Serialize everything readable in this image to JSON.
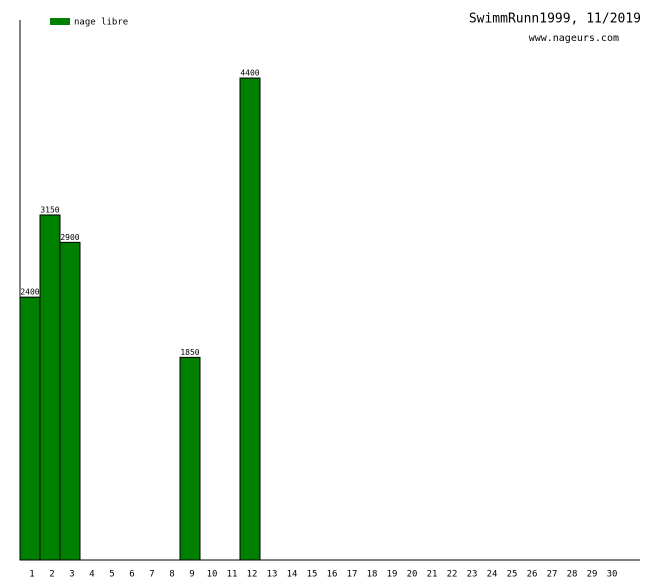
{
  "chart_data": {
    "type": "bar",
    "title": "SwimmRunn1999, 11/2019",
    "subtitle": "www.nageurs.com",
    "categories": [
      "1",
      "2",
      "3",
      "4",
      "5",
      "6",
      "7",
      "8",
      "9",
      "10",
      "11",
      "12",
      "13",
      "14",
      "15",
      "16",
      "17",
      "18",
      "19",
      "20",
      "21",
      "22",
      "23",
      "24",
      "25",
      "26",
      "27",
      "28",
      "29",
      "30"
    ],
    "series": [
      {
        "name": "nage libre",
        "color": "#008000",
        "values": [
          2400,
          3150,
          2900,
          null,
          null,
          null,
          null,
          null,
          1850,
          null,
          null,
          4400,
          null,
          null,
          null,
          null,
          null,
          null,
          null,
          null,
          null,
          null,
          null,
          null,
          null,
          null,
          null,
          null,
          null,
          null
        ]
      }
    ],
    "ylim": [
      0,
      4930
    ],
    "legend": "top-left"
  }
}
